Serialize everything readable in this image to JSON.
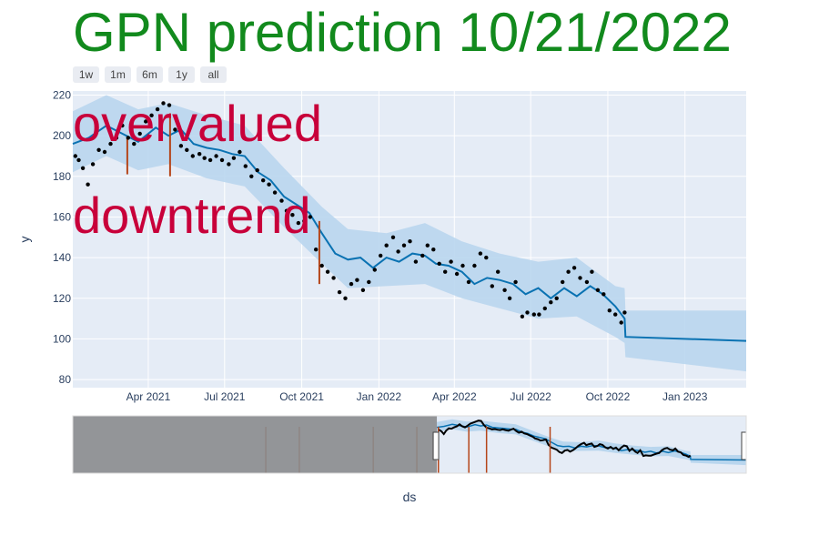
{
  "chart_data": {
    "type": "scatter",
    "title": "GPN prediction 10/21/2022",
    "xlabel": "ds",
    "ylabel": "y",
    "xrange": [
      "2021-01-01",
      "2023-03-15"
    ],
    "ylim": [
      76,
      222
    ],
    "yticks": [
      80,
      100,
      120,
      140,
      160,
      180,
      200,
      220
    ],
    "xticks": [
      {
        "date": "2021-04-01",
        "label": "Apr 2021"
      },
      {
        "date": "2021-07-01",
        "label": "Jul 2021"
      },
      {
        "date": "2021-10-01",
        "label": "Oct 2021"
      },
      {
        "date": "2022-01-01",
        "label": "Jan 2022"
      },
      {
        "date": "2022-04-01",
        "label": "Apr 2022"
      },
      {
        "date": "2022-07-01",
        "label": "Jul 2022"
      },
      {
        "date": "2022-10-01",
        "label": "Oct 2022"
      },
      {
        "date": "2023-01-01",
        "label": "Jan 2023"
      }
    ],
    "grid": true,
    "range_buttons": [
      "1w",
      "1m",
      "6m",
      "1y",
      "all"
    ],
    "annotations": [
      "overvalued",
      "downtrend"
    ],
    "colors": {
      "title": "#128a1d",
      "annotation": "#c8003a",
      "trend": "#0a72b2",
      "band": "#b9d6ee",
      "plot_bg": "#e5ecf6",
      "points": "#000000",
      "changepoint": "#b5461a",
      "slider_mask": "#8a8c8e"
    },
    "series": [
      {
        "type": "trend",
        "x": [
          "2021-01-01",
          "2021-01-20",
          "2021-02-10",
          "2021-03-01",
          "2021-03-20",
          "2021-04-10",
          "2021-04-25",
          "2021-05-10",
          "2021-05-25",
          "2021-06-10",
          "2021-06-25",
          "2021-07-10",
          "2021-07-25",
          "2021-08-10",
          "2021-08-25",
          "2021-09-10",
          "2021-09-25",
          "2021-10-10",
          "2021-10-25",
          "2021-11-10",
          "2021-11-25",
          "2021-12-10",
          "2021-12-25",
          "2022-01-10",
          "2022-01-25",
          "2022-02-10",
          "2022-02-25",
          "2022-03-10",
          "2022-03-25",
          "2022-04-10",
          "2022-04-25",
          "2022-05-10",
          "2022-05-25",
          "2022-06-10",
          "2022-06-25",
          "2022-07-10",
          "2022-07-25",
          "2022-08-10",
          "2022-08-25",
          "2022-09-10",
          "2022-09-25",
          "2022-10-10",
          "2022-10-21",
          "2022-10-22",
          "2023-03-15"
        ],
        "y": [
          196,
          199,
          205,
          201,
          197,
          204,
          200,
          203,
          196,
          194,
          193,
          191,
          190,
          182,
          178,
          170,
          166,
          162,
          152,
          142,
          139,
          140,
          135,
          140,
          138,
          142,
          141,
          137,
          136,
          133,
          127,
          130,
          129,
          127,
          122,
          125,
          120,
          125,
          121,
          126,
          122,
          116,
          110,
          101,
          99
        ]
      },
      {
        "type": "uncertainty_upper",
        "x": [
          "2021-01-01",
          "2021-02-10",
          "2021-03-20",
          "2021-04-25",
          "2021-06-10",
          "2021-07-25",
          "2021-09-10",
          "2021-10-25",
          "2021-11-25",
          "2022-01-10",
          "2022-02-25",
          "2022-04-10",
          "2022-05-25",
          "2022-07-10",
          "2022-08-25",
          "2022-10-10",
          "2022-10-21",
          "2022-10-22",
          "2023-03-15"
        ],
        "y": [
          212,
          220,
          213,
          216,
          210,
          205,
          184,
          165,
          154,
          152,
          157,
          148,
          142,
          138,
          140,
          126,
          125,
          114,
          114
        ]
      },
      {
        "type": "uncertainty_lower",
        "x": [
          "2021-01-01",
          "2021-02-10",
          "2021-03-20",
          "2021-04-25",
          "2021-06-10",
          "2021-07-25",
          "2021-09-10",
          "2021-10-25",
          "2021-11-25",
          "2022-01-10",
          "2022-02-25",
          "2022-04-10",
          "2022-05-25",
          "2022-07-10",
          "2022-08-25",
          "2022-10-10",
          "2022-10-21",
          "2022-10-22",
          "2023-03-15"
        ],
        "y": [
          182,
          190,
          183,
          186,
          179,
          175,
          155,
          137,
          125,
          126,
          127,
          120,
          115,
          110,
          111,
          101,
          98,
          91,
          84
        ]
      },
      {
        "type": "observed",
        "x": [
          "2021-01-04",
          "2021-01-08",
          "2021-01-13",
          "2021-01-19",
          "2021-01-25",
          "2021-02-01",
          "2021-02-08",
          "2021-02-15",
          "2021-02-22",
          "2021-03-01",
          "2021-03-08",
          "2021-03-15",
          "2021-03-22",
          "2021-03-29",
          "2021-04-05",
          "2021-04-12",
          "2021-04-19",
          "2021-04-26",
          "2021-05-03",
          "2021-05-10",
          "2021-05-17",
          "2021-05-24",
          "2021-06-01",
          "2021-06-07",
          "2021-06-14",
          "2021-06-21",
          "2021-06-28",
          "2021-07-06",
          "2021-07-12",
          "2021-07-19",
          "2021-07-26",
          "2021-08-02",
          "2021-08-09",
          "2021-08-16",
          "2021-08-23",
          "2021-08-30",
          "2021-09-07",
          "2021-09-13",
          "2021-09-20",
          "2021-09-27",
          "2021-10-04",
          "2021-10-11",
          "2021-10-18",
          "2021-10-25",
          "2021-11-01",
          "2021-11-08",
          "2021-11-15",
          "2021-11-22",
          "2021-11-29",
          "2021-12-06",
          "2021-12-13",
          "2021-12-20",
          "2021-12-27",
          "2022-01-03",
          "2022-01-10",
          "2022-01-18",
          "2022-01-24",
          "2022-01-31",
          "2022-02-07",
          "2022-02-14",
          "2022-02-22",
          "2022-02-28",
          "2022-03-07",
          "2022-03-14",
          "2022-03-21",
          "2022-03-28",
          "2022-04-04",
          "2022-04-11",
          "2022-04-18",
          "2022-04-25",
          "2022-05-02",
          "2022-05-09",
          "2022-05-16",
          "2022-05-23",
          "2022-05-31",
          "2022-06-06",
          "2022-06-13",
          "2022-06-21",
          "2022-06-27",
          "2022-07-05",
          "2022-07-11",
          "2022-07-18",
          "2022-07-25",
          "2022-08-01",
          "2022-08-08",
          "2022-08-15",
          "2022-08-22",
          "2022-08-29",
          "2022-09-06",
          "2022-09-12",
          "2022-09-19",
          "2022-09-26",
          "2022-10-03",
          "2022-10-10",
          "2022-10-17",
          "2022-10-21"
        ],
        "y": [
          190,
          188,
          184,
          176,
          186,
          193,
          192,
          196,
          199,
          205,
          199,
          196,
          201,
          207,
          210,
          213,
          216,
          215,
          203,
          195,
          193,
          190,
          191,
          189,
          188,
          190,
          188,
          186,
          189,
          192,
          185,
          180,
          183,
          178,
          176,
          172,
          168,
          163,
          161,
          157,
          158,
          160,
          144,
          136,
          133,
          130,
          123,
          120,
          127,
          129,
          124,
          128,
          134,
          141,
          146,
          150,
          143,
          146,
          148,
          138,
          141,
          146,
          144,
          137,
          133,
          138,
          132,
          136,
          128,
          136,
          142,
          140,
          126,
          133,
          124,
          120,
          128,
          111,
          113,
          112,
          112,
          115,
          118,
          120,
          128,
          133,
          135,
          130,
          128,
          133,
          124,
          122,
          114,
          112,
          108,
          113
        ]
      }
    ],
    "changepoints": [
      {
        "date": "2021-03-07",
        "y_low": 181,
        "y_high": 199
      },
      {
        "date": "2021-04-27",
        "y_low": 180,
        "y_high": 211
      },
      {
        "date": "2021-10-22",
        "y_low": 127,
        "y_high": 158
      }
    ],
    "range_slider": {
      "full_range": [
        "2018-06-01",
        "2023-03-15"
      ],
      "selected": [
        "2021-01-01",
        "2023-03-15"
      ],
      "changepoints": [
        "2019-10-15",
        "2020-01-10",
        "2020-07-20",
        "2020-11-10",
        "2021-01-05",
        "2021-03-25",
        "2021-05-10",
        "2021-10-22"
      ]
    }
  }
}
